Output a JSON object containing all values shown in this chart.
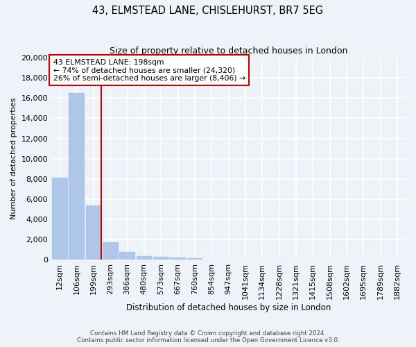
{
  "title": "43, ELMSTEAD LANE, CHISLEHURST, BR7 5EG",
  "subtitle": "Size of property relative to detached houses in London",
  "xlabel": "Distribution of detached houses by size in London",
  "ylabel": "Number of detached properties",
  "bar_labels": [
    "12sqm",
    "106sqm",
    "199sqm",
    "293sqm",
    "386sqm",
    "480sqm",
    "573sqm",
    "667sqm",
    "760sqm",
    "854sqm",
    "947sqm",
    "1041sqm",
    "1134sqm",
    "1228sqm",
    "1321sqm",
    "1415sqm",
    "1508sqm",
    "1602sqm",
    "1695sqm",
    "1789sqm",
    "1882sqm"
  ],
  "bar_values": [
    8100,
    16500,
    5400,
    1750,
    800,
    350,
    280,
    230,
    160,
    0,
    0,
    0,
    0,
    0,
    0,
    0,
    0,
    0,
    0,
    0,
    0
  ],
  "bar_color": "#aec6e8",
  "bar_edge_color": "#aec6e8",
  "vline_index": 2,
  "vline_color": "#cc0000",
  "annotation_text": "43 ELMSTEAD LANE: 198sqm\n← 74% of detached houses are smaller (24,320)\n26% of semi-detached houses are larger (8,406) →",
  "annotation_box_color": "#ffffff",
  "annotation_box_edge_color": "#cc0000",
  "ylim": [
    0,
    20000
  ],
  "yticks": [
    0,
    2000,
    4000,
    6000,
    8000,
    10000,
    12000,
    14000,
    16000,
    18000,
    20000
  ],
  "background_color": "#eef2f9",
  "grid_color": "#ffffff",
  "footer": "Contains HM Land Registry data © Crown copyright and database right 2024.\nContains public sector information licensed under the Open Government Licence v3.0."
}
